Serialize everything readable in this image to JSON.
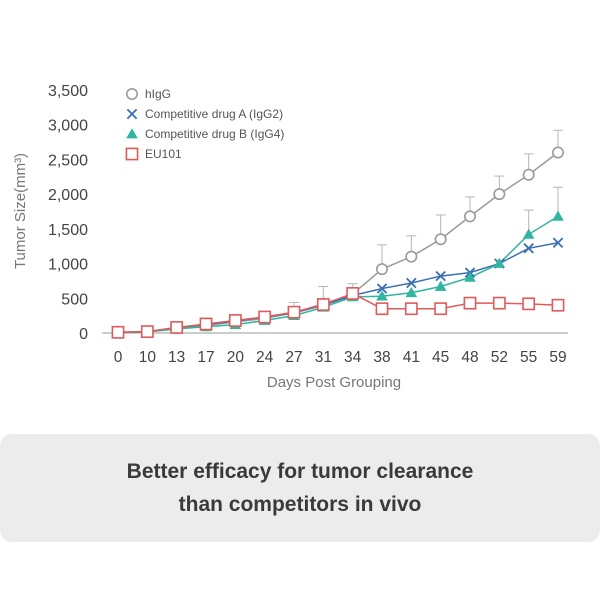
{
  "chart_data": {
    "type": "line",
    "xlabel": "Days Post Grouping",
    "ylabel": "Tumor Size(mm³)",
    "categories": [
      "0",
      "10",
      "13",
      "17",
      "20",
      "24",
      "27",
      "31",
      "34",
      "38",
      "41",
      "45",
      "48",
      "52",
      "55",
      "59"
    ],
    "ylim": [
      0,
      3500
    ],
    "yticks": [
      "0",
      "500",
      "1,000",
      "1,500",
      "2,000",
      "2,500",
      "3,000",
      "3,500"
    ],
    "grid": false,
    "legend_position": "top-left",
    "series": [
      {
        "name": "hIgG",
        "marker": "open-circle",
        "color": "#9a9a9a",
        "values": [
          10,
          20,
          70,
          110,
          160,
          210,
          290,
          420,
          560,
          920,
          1100,
          1350,
          1680,
          2000,
          2280,
          2600
        ],
        "error": [
          0,
          0,
          30,
          40,
          50,
          60,
          150,
          250,
          150,
          350,
          300,
          350,
          280,
          260,
          300,
          320
        ]
      },
      {
        "name": "Competitive drug A (IgG2)",
        "marker": "x",
        "color": "#3a6fb0",
        "values": [
          10,
          20,
          80,
          120,
          170,
          230,
          290,
          400,
          540,
          640,
          720,
          820,
          870,
          1000,
          1220,
          1300
        ],
        "error": []
      },
      {
        "name": "Competitive drug B (IgG4)",
        "marker": "triangle",
        "color": "#2fb5a0",
        "values": [
          10,
          15,
          60,
          90,
          120,
          180,
          250,
          370,
          520,
          530,
          580,
          670,
          800,
          1000,
          1420,
          1680
        ],
        "error": [
          0,
          0,
          0,
          0,
          0,
          0,
          0,
          0,
          0,
          0,
          0,
          0,
          0,
          0,
          350,
          420
        ]
      },
      {
        "name": "EU101",
        "marker": "open-square",
        "color": "#e05a5a",
        "values": [
          10,
          20,
          80,
          130,
          180,
          230,
          300,
          410,
          570,
          350,
          350,
          350,
          430,
          430,
          420,
          400
        ],
        "error": []
      }
    ]
  },
  "caption": {
    "line1": "Better efficacy for tumor clearance",
    "line2": "than competitors in vivo"
  }
}
